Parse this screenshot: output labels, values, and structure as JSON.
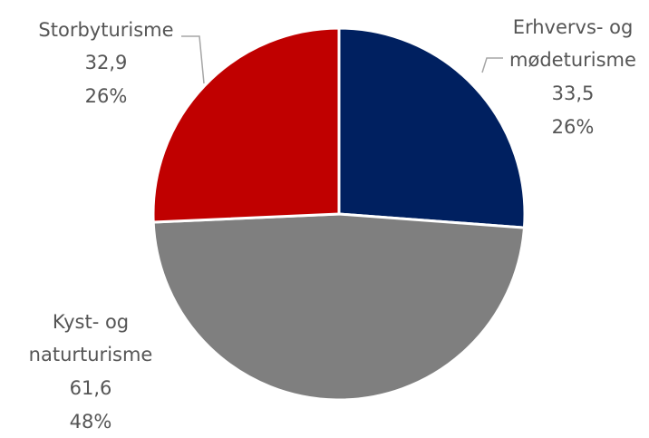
{
  "chart_data": {
    "type": "pie",
    "title": "",
    "slices": [
      {
        "name": "Erhvervs- og mødeturisme",
        "name_lines": [
          "Erhvervs- og",
          "mødeturisme"
        ],
        "value": 33.5,
        "value_label": "33,5",
        "percent_label": "26%",
        "color": "#002060"
      },
      {
        "name": "Kyst- og naturturisme",
        "name_lines": [
          "Kyst- og",
          "naturturisme"
        ],
        "value": 61.6,
        "value_label": "61,6",
        "percent_label": "48%",
        "color": "#7f7f7f"
      },
      {
        "name": "Storbyturisme",
        "name_lines": [
          "Storbyturisme"
        ],
        "value": 32.9,
        "value_label": "32,9",
        "percent_label": "26%",
        "color": "#c00000"
      }
    ]
  }
}
